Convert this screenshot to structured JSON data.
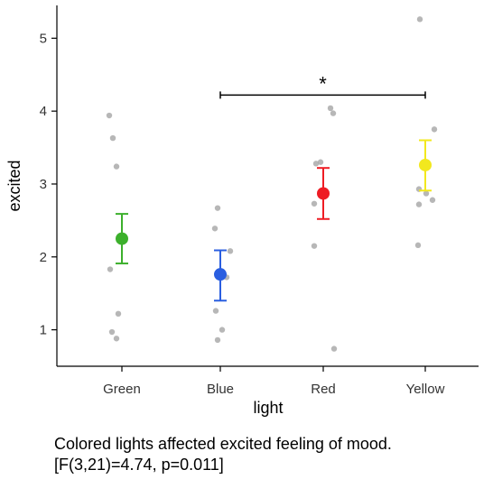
{
  "chart_data": {
    "type": "scatter",
    "subtype": "mean-errorbar-with-jittered-points",
    "xlabel": "light",
    "ylabel": "excited",
    "categories": [
      "Green",
      "Blue",
      "Red",
      "Yellow"
    ],
    "ylim": [
      0.5,
      5.45
    ],
    "yticks": [
      1,
      2,
      3,
      4,
      5
    ],
    "grid": false,
    "colors": {
      "Green": "#3cb02c",
      "Blue": "#2a5ee0",
      "Red": "#ee1c24",
      "Yellow": "#f2e81e",
      "points": "#aaaaaa"
    },
    "series": [
      {
        "category": "Green",
        "mean": 2.25,
        "lower": 1.91,
        "upper": 2.59,
        "points": [
          3.94,
          3.63,
          3.24,
          1.83,
          1.22,
          0.97,
          0.88
        ]
      },
      {
        "category": "Blue",
        "mean": 1.76,
        "lower": 1.4,
        "upper": 2.09,
        "points": [
          2.67,
          2.39,
          2.08,
          1.72,
          1.26,
          1.0,
          0.86
        ]
      },
      {
        "category": "Red",
        "mean": 2.87,
        "lower": 2.52,
        "upper": 3.22,
        "points": [
          4.04,
          3.97,
          3.3,
          3.28,
          2.73,
          2.15,
          0.74
        ]
      },
      {
        "category": "Yellow",
        "mean": 3.26,
        "lower": 2.91,
        "upper": 3.6,
        "points": [
          5.26,
          3.75,
          2.93,
          2.87,
          2.78,
          2.72,
          2.16
        ]
      }
    ],
    "annotations": [
      {
        "type": "significance-bracket",
        "from": "Blue",
        "to": "Yellow",
        "y": 4.22,
        "label": "*"
      }
    ]
  },
  "caption": {
    "line1": "Colored lights affected excited feeling of mood.",
    "line2": "[F(3,21)=4.74, p=0.011]"
  }
}
